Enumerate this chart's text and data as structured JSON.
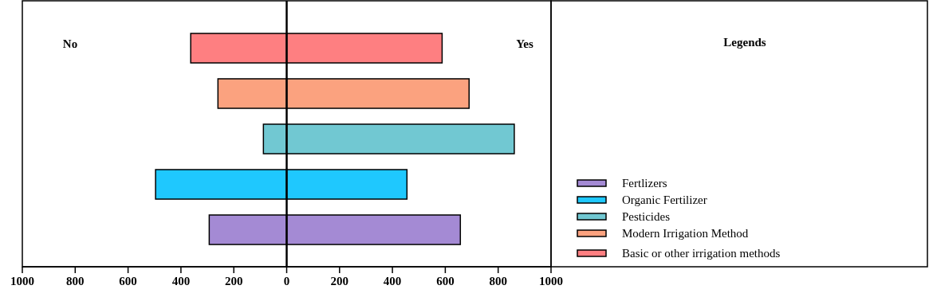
{
  "chart_data": {
    "type": "bar",
    "orientation": "horizontal",
    "stacked": true,
    "legend_title": "Legends",
    "tick_labels": "x",
    "annotations": [
      "No",
      "Yes",
      "Fertlizers",
      "Organic Fertilizer",
      "Pesticides",
      "Modern Irrigation Method",
      "Basic or other irrigation methods"
    ],
    "categories": [
      null,
      null,
      null,
      null,
      null
    ],
    "series": [
      {
        "colors": [
          "#fe7f81",
          "#fba27f",
          "#71c8d2",
          "#1fc8fe",
          "#a48ad4"
        ],
        "values": [
          -363,
          -260,
          -88,
          -496,
          -293
        ]
      },
      {
        "colors": [
          "#fe7f81",
          "#fba27f",
          "#71c8d2",
          "#1fc8fe",
          "#a48ad4"
        ],
        "values": [
          588,
          690,
          861,
          455,
          657
        ]
      }
    ],
    "xlim": [
      -1000,
      1000
    ],
    "xticks": [
      {
        "value": -1000,
        "label": "1000"
      },
      {
        "value": -800,
        "label": "800"
      },
      {
        "value": -600,
        "label": "600"
      },
      {
        "value": -400,
        "label": "400"
      },
      {
        "value": -200,
        "label": "200"
      },
      0,
      200,
      400,
      600,
      800,
      1000
    ]
  }
}
